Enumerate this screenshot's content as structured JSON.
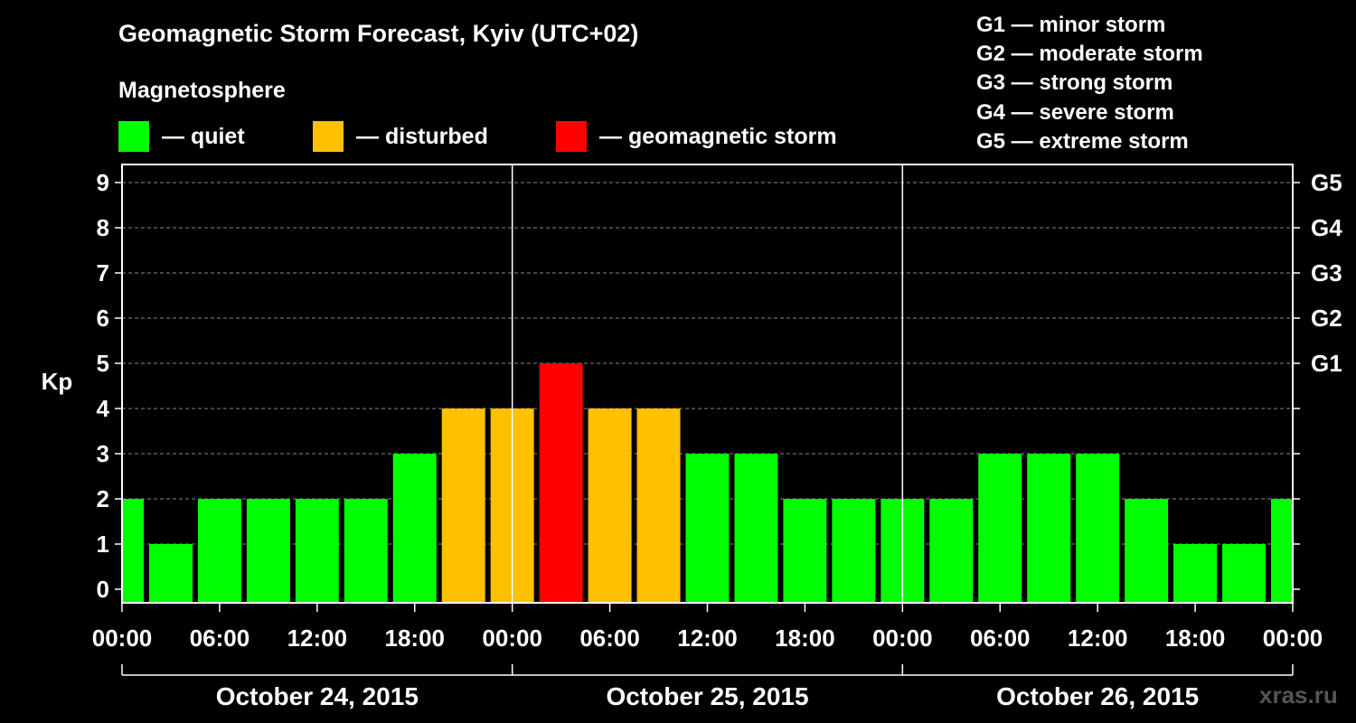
{
  "header": {
    "title": "Geomagnetic Storm Forecast, Kyiv (UTC+02)",
    "subtitle": "Magnetosphere",
    "watermark": "xras.ru"
  },
  "legend": [
    {
      "label": "— quiet",
      "color": "#00ff00"
    },
    {
      "label": "— disturbed",
      "color": "#ffc000"
    },
    {
      "label": "— geomagnetic storm",
      "color": "#ff0000"
    }
  ],
  "storm_scale": [
    "G1 — minor storm",
    "G2 — moderate storm",
    "G3 — strong storm",
    "G4 — severe storm",
    "G5 — extreme storm"
  ],
  "colors": {
    "quiet": "#00ff00",
    "disturbed": "#ffc000",
    "storm": "#ff0000",
    "background": "#000000",
    "axis": "#ffffff",
    "grid": "#888888"
  },
  "chart_data": {
    "type": "bar",
    "title": "Geomagnetic Storm Forecast, Kyiv (UTC+02)",
    "ylabel": "Kp",
    "ylim": [
      -0.3,
      9.4
    ],
    "yticks": [
      "0",
      "1",
      "2",
      "3",
      "4",
      "5",
      "6",
      "7",
      "8",
      "9"
    ],
    "right_axis_labels": [
      {
        "kp": 5,
        "label": "G1"
      },
      {
        "kp": 6,
        "label": "G2"
      },
      {
        "kp": 7,
        "label": "G3"
      },
      {
        "kp": 8,
        "label": "G4"
      },
      {
        "kp": 9,
        "label": "G5"
      }
    ],
    "x_range_hours": [
      0,
      72
    ],
    "xtick_labels": [
      "00:00",
      "06:00",
      "12:00",
      "18:00",
      "00:00",
      "06:00",
      "12:00",
      "18:00",
      "00:00",
      "06:00",
      "12:00",
      "18:00",
      "00:00"
    ],
    "day_labels": [
      "October 24, 2015",
      "October 25, 2015",
      "October 26, 2015"
    ],
    "day_boundaries_hours": [
      24,
      48
    ],
    "bar_interval_hours": 3,
    "values": [
      2,
      1,
      2,
      2,
      2,
      2,
      3,
      4,
      4,
      5,
      4,
      4,
      3,
      3,
      2,
      2,
      2,
      2,
      3,
      3,
      3,
      2,
      1,
      1,
      2
    ],
    "categories": [
      "quiet",
      "quiet",
      "quiet",
      "quiet",
      "quiet",
      "quiet",
      "quiet",
      "disturbed",
      "disturbed",
      "storm",
      "disturbed",
      "disturbed",
      "quiet",
      "quiet",
      "quiet",
      "quiet",
      "quiet",
      "quiet",
      "quiet",
      "quiet",
      "quiet",
      "quiet",
      "quiet",
      "quiet",
      "quiet"
    ],
    "grid": true
  }
}
